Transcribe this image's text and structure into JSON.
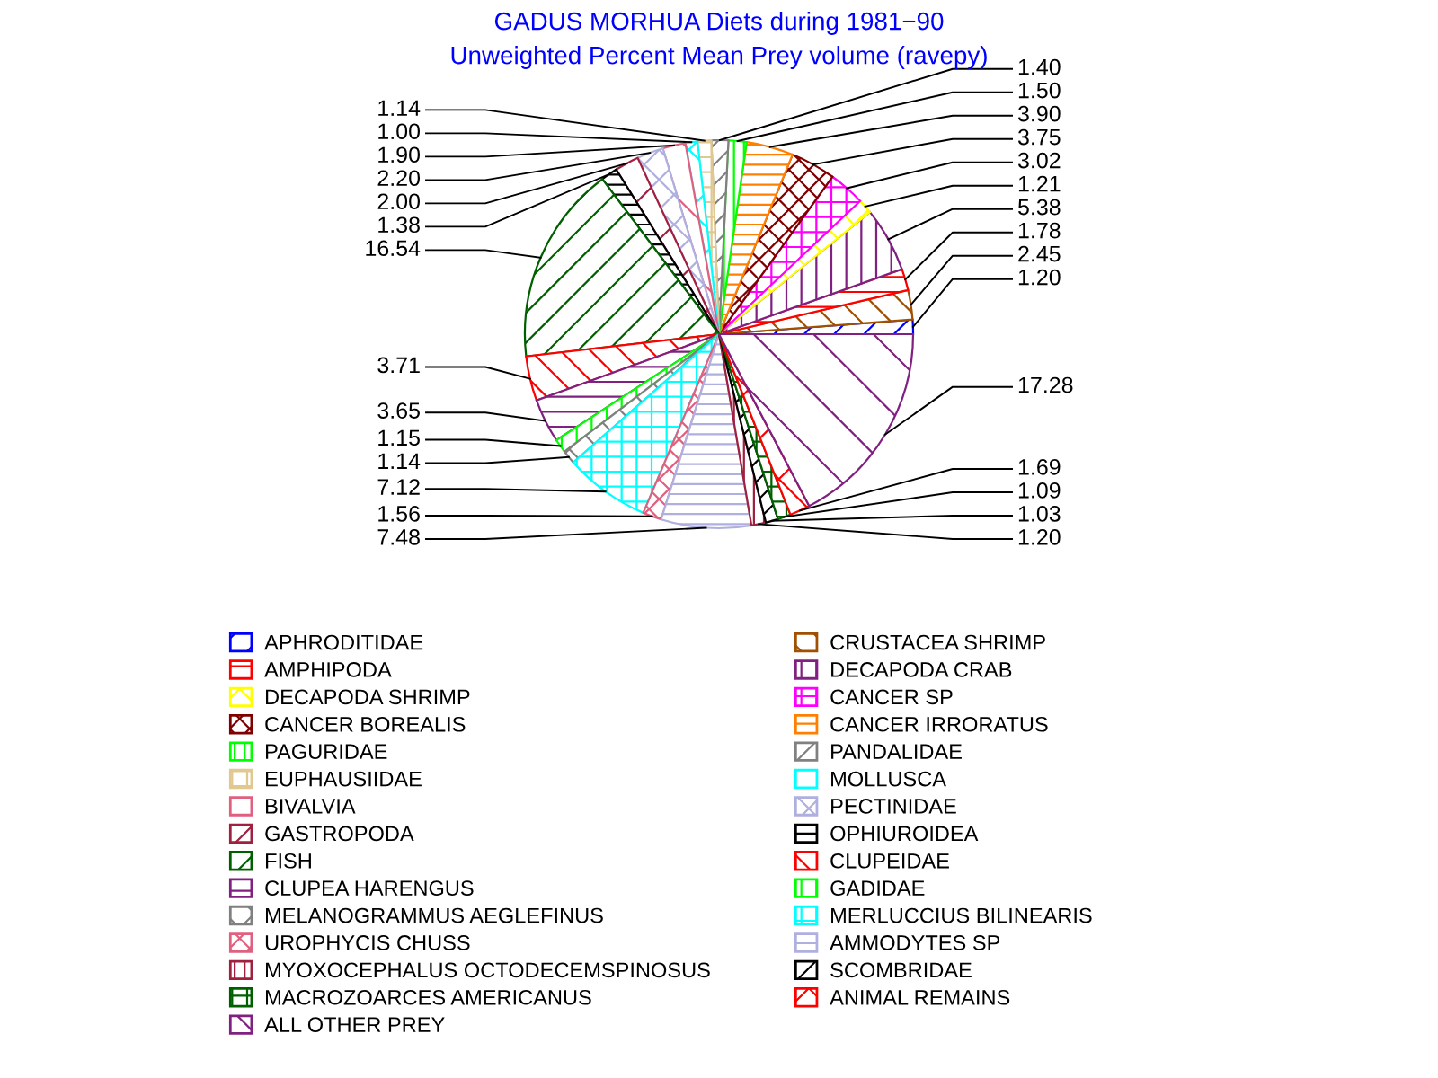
{
  "chart_data": {
    "type": "pie",
    "title": "GADUS MORHUA Diets during 1981−90",
    "subtitle": "Unweighted Percent Mean Prey volume (ravepy)",
    "categories": [
      "APHRODITIDAE",
      "CRUSTACEA SHRIMP",
      "AMPHIPODA",
      "DECAPODA CRAB",
      "DECAPODA SHRIMP",
      "CANCER SP",
      "CANCER BOREALIS",
      "CANCER IRRORATUS",
      "PAGURIDAE",
      "PANDALIDAE",
      "EUPHAUSIIDAE",
      "MOLLUSCA",
      "BIVALVIA",
      "PECTINIDAE",
      "GASTROPODA",
      "OPHIUROIDEA",
      "FISH",
      "CLUPEIDAE",
      "CLUPEA HARENGUS",
      "GADIDAE",
      "MELANOGRAMMUS AEGLEFINUS",
      "MERLUCCIUS BILINEARIS",
      "UROPHYCIS CHUSS",
      "AMMODYTES SP",
      "MYOXOCEPHALUS OCTODECEMSPINOSUS",
      "SCOMBRIDAE",
      "MACROZOARCES AMERICANUS",
      "ANIMAL REMAINS",
      "ALL OTHER PREY"
    ],
    "values": [
      1.2,
      2.45,
      1.78,
      5.38,
      1.21,
      3.02,
      3.75,
      3.9,
      1.5,
      1.4,
      1.14,
      1.0,
      1.9,
      2.2,
      2.0,
      1.38,
      16.54,
      3.71,
      3.65,
      1.15,
      1.14,
      7.12,
      1.56,
      7.48,
      1.2,
      1.03,
      1.09,
      1.69,
      17.28
    ],
    "value_labels": [
      "1.20",
      "2.45",
      "1.78",
      "5.38",
      "1.21",
      "3.02",
      "3.75",
      "3.90",
      "1.50",
      "1.40",
      "1.14",
      "1.00",
      "1.90",
      "2.20",
      "2.00",
      "1.38",
      "16.54",
      "3.71",
      "3.65",
      "1.15",
      "1.14",
      "7.12",
      "1.56",
      "7.48",
      "1.20",
      "1.03",
      "1.09",
      "1.69",
      "17.28"
    ],
    "colors": [
      "#0000ff",
      "#a05000",
      "#ff0000",
      "#802080",
      "#ffff00",
      "#ff00ff",
      "#800000",
      "#ff8000",
      "#00ff00",
      "#808080",
      "#e0c890",
      "#00ffff",
      "#e06080",
      "#b0b0e0",
      "#a02040",
      "#000000",
      "#006000",
      "#ff0000",
      "#802080",
      "#00ff00",
      "#808080",
      "#00ffff",
      "#e06080",
      "#b0b0e0",
      "#a02040",
      "#000000",
      "#006000",
      "#ff0000",
      "#802080"
    ],
    "legend": "bottom"
  }
}
